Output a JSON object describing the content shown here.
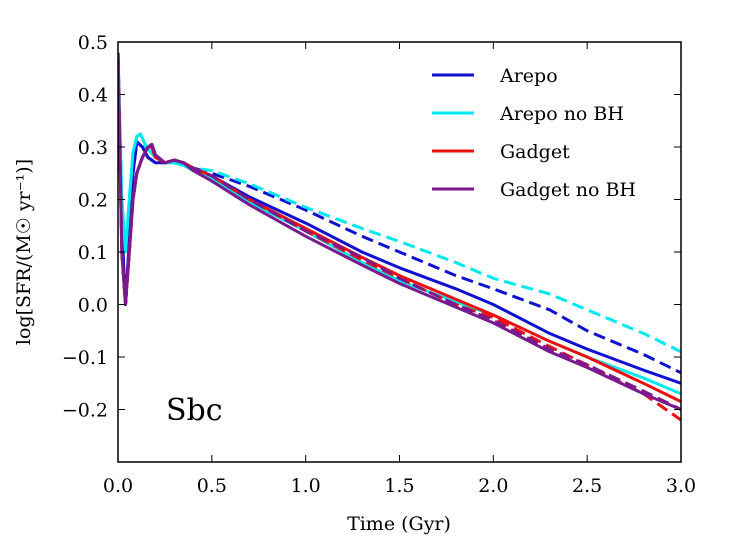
{
  "chart_data": {
    "type": "line",
    "title": "",
    "xlabel": "Time (Gyr)",
    "ylabel": "log[SFR/(M☉ yr⁻¹)]",
    "xlim": [
      0.0,
      3.0
    ],
    "ylim": [
      -0.3,
      0.5
    ],
    "xticks": [
      0.0,
      0.5,
      1.0,
      1.5,
      2.0,
      2.5,
      3.0
    ],
    "xtick_labels": [
      "0.0",
      "0.5",
      "1.0",
      "1.5",
      "2.0",
      "2.5",
      "3.0"
    ],
    "yticks": [
      -0.2,
      -0.1,
      0.0,
      0.1,
      0.2,
      0.3,
      0.4,
      0.5
    ],
    "ytick_labels": [
      "−0.2",
      "−0.1",
      "0.0",
      "0.1",
      "0.2",
      "0.3",
      "0.4",
      "0.5"
    ],
    "grid": false,
    "legend_position": "top-right",
    "annotation": "Sbc",
    "series": [
      {
        "name": "Arepo",
        "color": "#1010d0",
        "style": "solid",
        "x": [
          0.0,
          0.02,
          0.04,
          0.06,
          0.08,
          0.1,
          0.13,
          0.16,
          0.2,
          0.25,
          0.3,
          0.35,
          0.4,
          0.5,
          0.7,
          1.0,
          1.3,
          1.5,
          1.8,
          2.0,
          2.3,
          2.5,
          2.8,
          3.0
        ],
        "y": [
          0.48,
          0.15,
          0.0,
          0.12,
          0.25,
          0.31,
          0.3,
          0.28,
          0.27,
          0.27,
          0.275,
          0.27,
          0.26,
          0.245,
          0.205,
          0.155,
          0.1,
          0.07,
          0.03,
          0.0,
          -0.055,
          -0.085,
          -0.125,
          -0.15
        ]
      },
      {
        "name": "Arepo",
        "color": "#1010d0",
        "style": "dashed",
        "x": [
          0.0,
          0.02,
          0.04,
          0.06,
          0.08,
          0.1,
          0.13,
          0.16,
          0.2,
          0.25,
          0.3,
          0.35,
          0.4,
          0.5,
          0.7,
          1.0,
          1.3,
          1.5,
          1.8,
          2.0,
          2.3,
          2.5,
          2.8,
          3.0
        ],
        "y": [
          0.48,
          0.15,
          0.0,
          0.12,
          0.25,
          0.31,
          0.3,
          0.28,
          0.27,
          0.27,
          0.275,
          0.27,
          0.26,
          0.25,
          0.225,
          0.18,
          0.13,
          0.1,
          0.055,
          0.03,
          -0.01,
          -0.05,
          -0.095,
          -0.13
        ]
      },
      {
        "name": "Arepo no BH",
        "color": "#00e8f0",
        "style": "solid",
        "x": [
          0.0,
          0.02,
          0.04,
          0.06,
          0.08,
          0.1,
          0.12,
          0.15,
          0.2,
          0.25,
          0.3,
          0.35,
          0.4,
          0.5,
          0.7,
          1.0,
          1.3,
          1.5,
          1.8,
          2.0,
          2.3,
          2.5,
          2.8,
          3.0
        ],
        "y": [
          0.48,
          0.2,
          0.1,
          0.2,
          0.29,
          0.32,
          0.325,
          0.3,
          0.28,
          0.27,
          0.27,
          0.265,
          0.255,
          0.24,
          0.195,
          0.14,
          0.08,
          0.045,
          0.005,
          -0.02,
          -0.07,
          -0.1,
          -0.14,
          -0.17
        ]
      },
      {
        "name": "Arepo no BH",
        "color": "#00e8f0",
        "style": "dashed",
        "x": [
          0.0,
          0.02,
          0.04,
          0.06,
          0.08,
          0.1,
          0.12,
          0.15,
          0.2,
          0.25,
          0.3,
          0.35,
          0.4,
          0.5,
          0.7,
          1.0,
          1.3,
          1.5,
          1.8,
          2.0,
          2.3,
          2.5,
          2.8,
          3.0
        ],
        "y": [
          0.48,
          0.2,
          0.1,
          0.2,
          0.29,
          0.32,
          0.325,
          0.3,
          0.28,
          0.27,
          0.27,
          0.265,
          0.26,
          0.255,
          0.23,
          0.185,
          0.145,
          0.12,
          0.08,
          0.05,
          0.02,
          -0.01,
          -0.055,
          -0.09
        ]
      },
      {
        "name": "Gadget",
        "color": "#ee1010",
        "style": "solid",
        "x": [
          0.0,
          0.02,
          0.04,
          0.06,
          0.08,
          0.1,
          0.13,
          0.16,
          0.18,
          0.2,
          0.25,
          0.3,
          0.35,
          0.4,
          0.5,
          0.7,
          1.0,
          1.3,
          1.5,
          1.8,
          2.0,
          2.3,
          2.5,
          2.8,
          3.0
        ],
        "y": [
          0.48,
          0.1,
          0.0,
          0.1,
          0.2,
          0.25,
          0.28,
          0.3,
          0.3,
          0.28,
          0.27,
          0.275,
          0.27,
          0.26,
          0.245,
          0.2,
          0.145,
          0.09,
          0.055,
          0.01,
          -0.02,
          -0.07,
          -0.1,
          -0.15,
          -0.185
        ]
      },
      {
        "name": "Gadget",
        "color": "#ee1010",
        "style": "dashed",
        "x": [
          0.0,
          0.02,
          0.04,
          0.06,
          0.08,
          0.1,
          0.13,
          0.16,
          0.18,
          0.2,
          0.25,
          0.3,
          0.35,
          0.4,
          0.5,
          0.7,
          1.0,
          1.3,
          1.5,
          1.8,
          2.0,
          2.3,
          2.5,
          2.8,
          3.0
        ],
        "y": [
          0.48,
          0.1,
          0.0,
          0.1,
          0.2,
          0.25,
          0.28,
          0.3,
          0.3,
          0.28,
          0.27,
          0.275,
          0.27,
          0.26,
          0.245,
          0.2,
          0.14,
          0.085,
          0.05,
          0.0,
          -0.025,
          -0.08,
          -0.115,
          -0.17,
          -0.22
        ]
      },
      {
        "name": "Gadget no BH",
        "color": "#7a1a8e",
        "style": "solid",
        "x": [
          0.0,
          0.02,
          0.04,
          0.06,
          0.08,
          0.1,
          0.13,
          0.16,
          0.18,
          0.2,
          0.25,
          0.3,
          0.35,
          0.4,
          0.5,
          0.7,
          1.0,
          1.3,
          1.5,
          1.8,
          2.0,
          2.3,
          2.5,
          2.8,
          3.0
        ],
        "y": [
          0.48,
          0.1,
          0.0,
          0.1,
          0.2,
          0.25,
          0.28,
          0.3,
          0.305,
          0.285,
          0.27,
          0.275,
          0.27,
          0.255,
          0.235,
          0.19,
          0.13,
          0.075,
          0.04,
          -0.005,
          -0.035,
          -0.09,
          -0.12,
          -0.17,
          -0.2
        ]
      },
      {
        "name": "Gadget no BH",
        "color": "#7a1a8e",
        "style": "dashed",
        "x": [
          0.0,
          0.02,
          0.04,
          0.06,
          0.08,
          0.1,
          0.13,
          0.16,
          0.18,
          0.2,
          0.25,
          0.3,
          0.35,
          0.4,
          0.5,
          0.7,
          1.0,
          1.3,
          1.5,
          1.8,
          2.0,
          2.3,
          2.5,
          2.8,
          3.0
        ],
        "y": [
          0.48,
          0.1,
          0.0,
          0.1,
          0.2,
          0.25,
          0.28,
          0.3,
          0.305,
          0.285,
          0.27,
          0.275,
          0.27,
          0.26,
          0.245,
          0.2,
          0.14,
          0.09,
          0.05,
          0.0,
          -0.03,
          -0.085,
          -0.115,
          -0.165,
          -0.2
        ]
      }
    ],
    "legend": [
      {
        "label": "Arepo",
        "color": "#1010d0"
      },
      {
        "label": "Arepo no BH",
        "color": "#00e8f0"
      },
      {
        "label": "Gadget",
        "color": "#ee1010"
      },
      {
        "label": "Gadget no BH",
        "color": "#7a1a8e"
      }
    ]
  }
}
